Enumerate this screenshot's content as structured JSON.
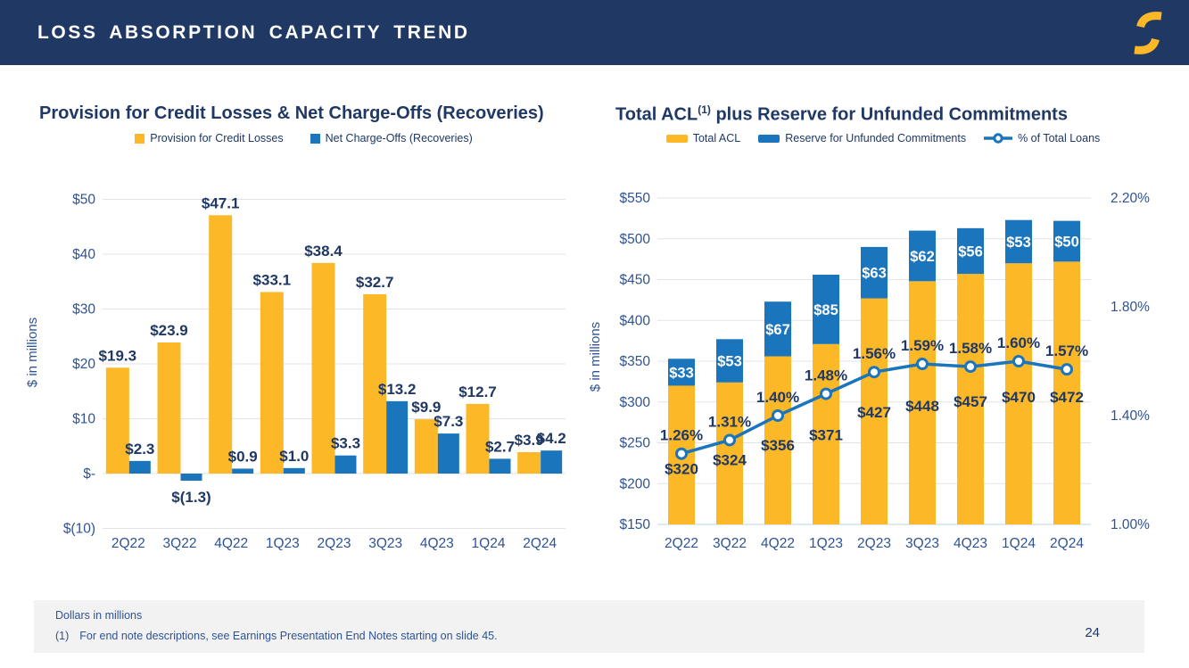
{
  "colors": {
    "header_bg": "#1F3864",
    "navy": "#1F3864",
    "gold": "#FCB826",
    "blue": "#1B75BC",
    "axis_label": "#2E5395",
    "gridline": "#E3E3E3",
    "baseline": "#BDD7EE",
    "footer_bg": "#F2F2F2",
    "white": "#FFFFFF"
  },
  "header": {
    "title": "LOSS ABSORPTION CAPACITY TREND",
    "logo": "gold-s-logo"
  },
  "chart_data": [
    {
      "type": "bar",
      "title": "Provision for Credit Losses & Net Charge-Offs (Recoveries)",
      "ylabel": "$ in millions",
      "ylim": [
        -10,
        50
      ],
      "grid": true,
      "legend_position": "top",
      "categories": [
        "2Q22",
        "3Q22",
        "4Q22",
        "1Q23",
        "2Q23",
        "3Q23",
        "4Q23",
        "1Q24",
        "2Q24"
      ],
      "y_ticks": [
        {
          "value": 50,
          "label": "$50"
        },
        {
          "value": 40,
          "label": "$40"
        },
        {
          "value": 30,
          "label": "$30"
        },
        {
          "value": 20,
          "label": "$20"
        },
        {
          "value": 10,
          "label": "$10"
        },
        {
          "value": 0,
          "label": "$-"
        },
        {
          "value": -10,
          "label": "$(10)"
        }
      ],
      "series": [
        {
          "name": "Provision for Credit Losses",
          "values": [
            19.3,
            23.9,
            47.1,
            33.1,
            38.4,
            32.7,
            9.9,
            12.7,
            3.9
          ],
          "labels": [
            "$19.3",
            "$23.9",
            "$47.1",
            "$33.1",
            "$38.4",
            "$32.7",
            "$9.9",
            "$12.7",
            "$3.9"
          ]
        },
        {
          "name": "Net Charge-Offs (Recoveries)",
          "values": [
            2.3,
            -1.3,
            0.9,
            1.0,
            3.3,
            13.2,
            7.3,
            2.7,
            4.2
          ],
          "labels": [
            "$2.3",
            "$(1.3)",
            "$0.9",
            "$1.0",
            "$3.3",
            "$13.2",
            "$7.3",
            "$2.7",
            "$4.2"
          ]
        }
      ]
    },
    {
      "type": "stacked-bar-line",
      "title": "Total ACL(1) plus Reserve for Unfunded Commitments",
      "title_parts": {
        "prefix": "Total ACL",
        "sup": "(1)",
        "suffix": " plus Reserve for Unfunded Commitments"
      },
      "ylabel": "$ in millions",
      "ylim_left": [
        150,
        550
      ],
      "ylim_right": [
        1.0,
        2.2
      ],
      "grid": true,
      "legend_position": "top",
      "categories": [
        "2Q22",
        "3Q22",
        "4Q22",
        "1Q23",
        "2Q23",
        "3Q23",
        "4Q23",
        "1Q24",
        "2Q24"
      ],
      "y_ticks_left": [
        {
          "value": 550,
          "label": "$550"
        },
        {
          "value": 500,
          "label": "$500"
        },
        {
          "value": 450,
          "label": "$450"
        },
        {
          "value": 400,
          "label": "$400"
        },
        {
          "value": 350,
          "label": "$350"
        },
        {
          "value": 300,
          "label": "$300"
        },
        {
          "value": 250,
          "label": "$250"
        },
        {
          "value": 200,
          "label": "$200"
        },
        {
          "value": 150,
          "label": "$150"
        }
      ],
      "y_ticks_right": [
        {
          "value": 2.2,
          "label": "2.20%"
        },
        {
          "value": 1.8,
          "label": "1.80%"
        },
        {
          "value": 1.4,
          "label": "1.40%"
        },
        {
          "value": 1.0,
          "label": "1.00%"
        }
      ],
      "series": [
        {
          "name": "Total ACL",
          "values": [
            320,
            324,
            356,
            371,
            427,
            448,
            457,
            470,
            472
          ],
          "labels": [
            "$320",
            "$324",
            "$356",
            "$371",
            "$427",
            "$448",
            "$457",
            "$470",
            "$472"
          ]
        },
        {
          "name": "Reserve for Unfunded Commitments",
          "values": [
            33,
            53,
            67,
            85,
            63,
            62,
            56,
            53,
            50
          ],
          "labels": [
            "$33",
            "$53",
            "$67",
            "$85",
            "$63",
            "$62",
            "$56",
            "$53",
            "$50"
          ]
        },
        {
          "name": "% of Total Loans",
          "axis": "right",
          "values": [
            1.26,
            1.31,
            1.4,
            1.48,
            1.56,
            1.59,
            1.58,
            1.6,
            1.57
          ],
          "labels": [
            "1.26%",
            "1.31%",
            "1.40%",
            "1.48%",
            "1.56%",
            "1.59%",
            "1.58%",
            "1.60%",
            "1.57%"
          ]
        }
      ]
    }
  ],
  "footer": {
    "note": "Dollars in millions",
    "footnote_marker": "(1)",
    "footnote_text": "For end note descriptions, see Earnings Presentation End Notes starting on slide 45.",
    "page_number": "24"
  }
}
